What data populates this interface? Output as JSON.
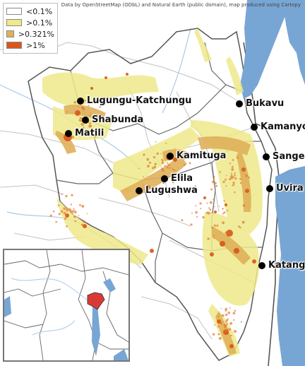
{
  "attribution": "Data by OpenStreetMap (ODbL) and Natural Earth (public domain), map produced using Cartopy",
  "legend": [
    {
      "label": "<0.1%",
      "color": "#ffffff"
    },
    {
      "label": ">0.1%",
      "color": "#eee98a"
    },
    {
      "label": ">0.321%",
      "color": "#e0b15a"
    },
    {
      "label": ">1%",
      "color": "#d9561a"
    }
  ],
  "cities": [
    {
      "name": "Lugungu-Katchungu"
    },
    {
      "name": "Shabunda"
    },
    {
      "name": "Matili"
    },
    {
      "name": "Bukavu"
    },
    {
      "name": "Kamanyola"
    },
    {
      "name": "Kamituga"
    },
    {
      "name": "Sange"
    },
    {
      "name": "Elila"
    },
    {
      "name": "Lugushwa"
    },
    {
      "name": "Uvira"
    },
    {
      "name": "Katanga"
    }
  ],
  "colors": {
    "lake": "#78a6d4",
    "river": "#a9c9ea",
    "border": "#666666",
    "road": "#c3c3c3",
    "highlight_region": "#d93a35"
  }
}
